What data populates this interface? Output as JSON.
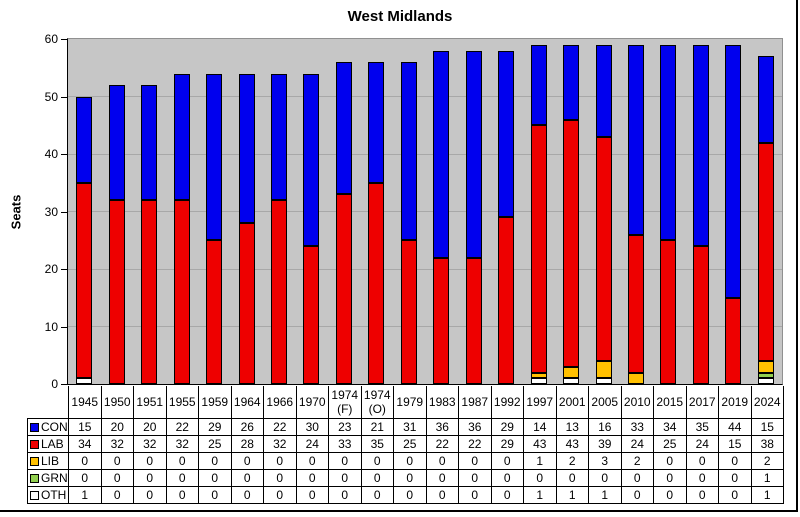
{
  "chart_data": {
    "type": "bar",
    "stacked": true,
    "title": "West Midlands",
    "ylabel": "Seats",
    "ylim": [
      0,
      60
    ],
    "yticks": [
      0,
      10,
      20,
      30,
      40,
      50,
      60
    ],
    "grid": true,
    "legend_position": "table-left-column",
    "plot_bg_color": "#C6C6C6",
    "grid_color": "#A8A8A8",
    "categories": [
      "1945",
      "1950",
      "1951",
      "1955",
      "1959",
      "1964",
      "1966",
      "1970",
      "1974 (F)",
      "1974 (O)",
      "1979",
      "1983",
      "1987",
      "1992",
      "1997",
      "2001",
      "2005",
      "2010",
      "2015",
      "2017",
      "2019",
      "2024"
    ],
    "stack_order_bottom_to_top": [
      "OTH",
      "GRN",
      "LIB",
      "LAB",
      "CON"
    ],
    "series": [
      {
        "name": "CON",
        "color": "#0000EE",
        "values": [
          15,
          20,
          20,
          22,
          29,
          26,
          22,
          30,
          23,
          21,
          31,
          36,
          36,
          29,
          14,
          13,
          16,
          33,
          34,
          35,
          44,
          15
        ]
      },
      {
        "name": "LAB",
        "color": "#EE0000",
        "values": [
          34,
          32,
          32,
          32,
          25,
          28,
          32,
          24,
          33,
          35,
          25,
          22,
          22,
          29,
          43,
          43,
          39,
          24,
          25,
          24,
          15,
          38
        ]
      },
      {
        "name": "LIB",
        "color": "#FFC000",
        "values": [
          0,
          0,
          0,
          0,
          0,
          0,
          0,
          0,
          0,
          0,
          0,
          0,
          0,
          0,
          1,
          2,
          3,
          2,
          0,
          0,
          0,
          2
        ]
      },
      {
        "name": "GRN",
        "color": "#92D050",
        "values": [
          0,
          0,
          0,
          0,
          0,
          0,
          0,
          0,
          0,
          0,
          0,
          0,
          0,
          0,
          0,
          0,
          0,
          0,
          0,
          0,
          0,
          1
        ]
      },
      {
        "name": "OTH",
        "color": "#FFFFFF",
        "values": [
          1,
          0,
          0,
          0,
          0,
          0,
          0,
          0,
          0,
          0,
          0,
          0,
          0,
          0,
          1,
          1,
          1,
          0,
          0,
          0,
          0,
          1
        ]
      }
    ]
  }
}
